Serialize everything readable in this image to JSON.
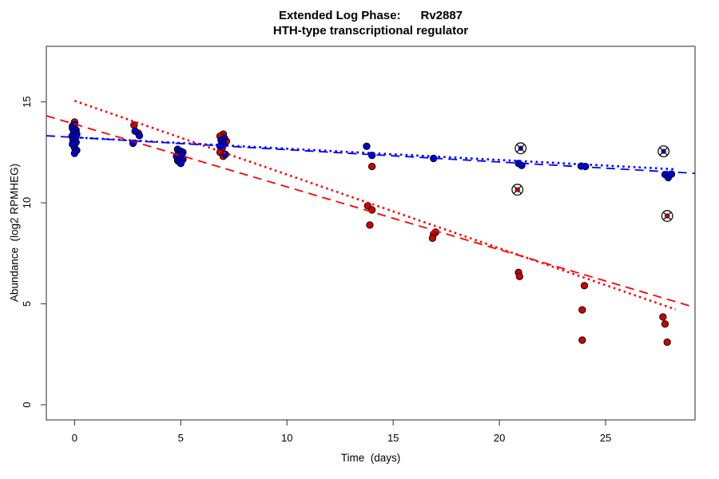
{
  "chart_data": {
    "type": "scatter",
    "title": "Extended Log Phase:      Rv2887",
    "subtitle": "HTH-type transcriptional regulator",
    "xlabel": "Time  (days)",
    "ylabel": "Abundance  (log2 RPMHEG)",
    "xlim": [
      -1.33,
      29.21
    ],
    "ylim": [
      -0.75,
      17.75
    ],
    "xticks": [
      0,
      5,
      10,
      15,
      20,
      25
    ],
    "yticks": [
      0,
      5,
      10,
      15
    ],
    "grid": false,
    "legend_position": "none",
    "colors": {
      "red_points": "#CC0000",
      "blue_points": "#0000CC",
      "red_line": "#FF0000",
      "blue_line": "#0000FF",
      "point_edge": "#000000",
      "frame": "#4d4d4d",
      "background": "#FFFFFF"
    },
    "series": [
      {
        "name": "red-condition-points",
        "marker": "filled-circle",
        "color": "#CC0000",
        "points": [
          [
            0.0,
            14.0
          ],
          [
            -0.1,
            13.8
          ],
          [
            0.05,
            13.42
          ],
          [
            -0.05,
            13.15
          ],
          [
            0.0,
            12.9
          ],
          [
            2.8,
            13.85
          ],
          [
            3.0,
            13.45
          ],
          [
            4.9,
            12.45
          ],
          [
            5.05,
            12.25
          ],
          [
            4.85,
            12.1
          ],
          [
            7.0,
            13.4
          ],
          [
            6.85,
            13.3
          ],
          [
            7.15,
            13.05
          ],
          [
            6.95,
            12.7
          ],
          [
            6.85,
            12.5
          ],
          [
            7.0,
            12.3
          ],
          [
            14.0,
            11.8
          ],
          [
            13.8,
            9.85
          ],
          [
            14.0,
            9.65
          ],
          [
            13.9,
            8.9
          ],
          [
            17.0,
            8.55
          ],
          [
            16.9,
            8.45
          ],
          [
            16.85,
            8.25
          ],
          [
            20.9,
            6.55
          ],
          [
            20.95,
            6.35
          ],
          [
            24.0,
            5.9
          ],
          [
            23.9,
            4.7
          ],
          [
            23.9,
            3.2
          ],
          [
            27.7,
            4.35
          ],
          [
            27.8,
            4.0
          ],
          [
            27.9,
            3.1
          ]
        ]
      },
      {
        "name": "blue-condition-points",
        "marker": "filled-circle",
        "color": "#0000CC",
        "points": [
          [
            0.0,
            13.87
          ],
          [
            -0.1,
            13.7
          ],
          [
            0.07,
            13.6
          ],
          [
            -0.04,
            13.5
          ],
          [
            0.1,
            13.4
          ],
          [
            -0.12,
            13.3
          ],
          [
            0.03,
            13.2
          ],
          [
            -0.07,
            13.1
          ],
          [
            0.07,
            13.0
          ],
          [
            -0.1,
            12.9
          ],
          [
            0.0,
            12.72
          ],
          [
            0.1,
            12.6
          ],
          [
            0.0,
            12.45
          ],
          [
            2.85,
            13.55
          ],
          [
            3.05,
            13.33
          ],
          [
            2.75,
            12.95
          ],
          [
            4.85,
            12.65
          ],
          [
            5.0,
            12.55
          ],
          [
            5.1,
            12.5
          ],
          [
            4.9,
            12.4
          ],
          [
            5.05,
            12.35
          ],
          [
            4.8,
            12.3
          ],
          [
            4.95,
            12.2
          ],
          [
            5.1,
            12.15
          ],
          [
            4.9,
            12.05
          ],
          [
            5.0,
            11.95
          ],
          [
            7.05,
            13.2
          ],
          [
            6.9,
            13.1
          ],
          [
            7.0,
            12.9
          ],
          [
            6.85,
            12.8
          ],
          [
            7.1,
            12.4
          ],
          [
            13.75,
            12.8
          ],
          [
            14.0,
            12.35
          ],
          [
            16.9,
            12.2
          ],
          [
            20.9,
            11.95
          ],
          [
            21.05,
            11.85
          ],
          [
            23.85,
            11.82
          ],
          [
            24.05,
            11.8
          ],
          [
            27.8,
            11.4
          ],
          [
            27.95,
            11.25
          ],
          [
            28.1,
            11.42
          ]
        ]
      },
      {
        "name": "red-flagged-outliers",
        "marker": "circle-cross",
        "color": "#CC0000",
        "points": [
          [
            20.85,
            10.65
          ],
          [
            27.9,
            9.35
          ]
        ]
      },
      {
        "name": "blue-flagged-outliers",
        "marker": "circle-cross",
        "color": "#0000CC",
        "points": [
          [
            21.0,
            12.7
          ],
          [
            27.73,
            12.55
          ]
        ]
      }
    ],
    "lines": [
      {
        "name": "red-dashed-fit",
        "color": "#FF0000",
        "dash": "dashed",
        "x": [
          -1.33,
          29.21
        ],
        "y": [
          14.31,
          4.82
        ]
      },
      {
        "name": "red-dotted-fit",
        "color": "#FF0000",
        "dash": "dotted",
        "x": [
          0,
          28.3
        ],
        "y": [
          15.05,
          4.72
        ]
      },
      {
        "name": "blue-dashed-fit",
        "color": "#0000FF",
        "dash": "dashed",
        "x": [
          -1.33,
          29.21
        ],
        "y": [
          13.32,
          11.46
        ]
      },
      {
        "name": "blue-dotted-fit",
        "color": "#0000FF",
        "dash": "dotted",
        "x": [
          0,
          28.3
        ],
        "y": [
          13.24,
          11.66
        ]
      }
    ]
  }
}
